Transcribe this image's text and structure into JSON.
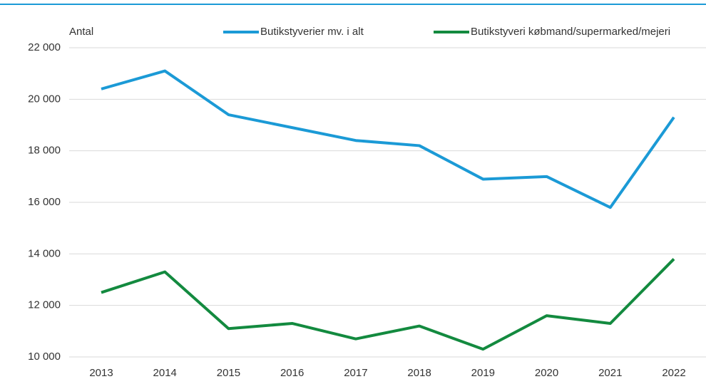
{
  "chart_data": {
    "type": "line",
    "y_label": "Antal",
    "categories": [
      "2013",
      "2014",
      "2015",
      "2016",
      "2017",
      "2018",
      "2019",
      "2020",
      "2021",
      "2022"
    ],
    "series": [
      {
        "name": "Butikstyverier mv. i alt",
        "color": "#1b9ad6",
        "values": [
          20400,
          21100,
          19400,
          18900,
          18400,
          18200,
          16900,
          17000,
          15800,
          19300
        ]
      },
      {
        "name": "Butikstyveri købmand/supermarked/mejeri",
        "color": "#138a3f",
        "values": [
          12500,
          13300,
          11100,
          11300,
          10700,
          11200,
          10300,
          11600,
          11300,
          13800
        ]
      }
    ],
    "ylim": [
      10000,
      22000
    ],
    "yticks": [
      {
        "value": 10000,
        "label": "10 000"
      },
      {
        "value": 12000,
        "label": "12 000"
      },
      {
        "value": 14000,
        "label": "14 000"
      },
      {
        "value": 16000,
        "label": "16 000"
      },
      {
        "value": 18000,
        "label": "18 000"
      },
      {
        "value": 20000,
        "label": "20 000"
      },
      {
        "value": 22000,
        "label": "22 000"
      }
    ],
    "grid": true
  }
}
